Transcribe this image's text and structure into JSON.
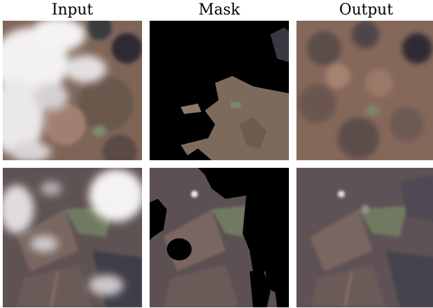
{
  "headers": {
    "input": "Input",
    "mask": "Mask",
    "output": "Output"
  },
  "colors": {
    "terrain_brown": "#8a6a55",
    "terrain_dark": "#4d4a52",
    "cloud_white": "#f0eef0",
    "mask_black": "#000000",
    "field_green": "#7d8a6a",
    "background": "#ffffff"
  },
  "rows": [
    {
      "input": "satellite-image-input-1",
      "mask": "satellite-image-mask-1",
      "output": "satellite-image-output-1"
    },
    {
      "input": "satellite-image-input-2",
      "mask": "satellite-image-mask-2",
      "output": "satellite-image-output-2"
    }
  ]
}
